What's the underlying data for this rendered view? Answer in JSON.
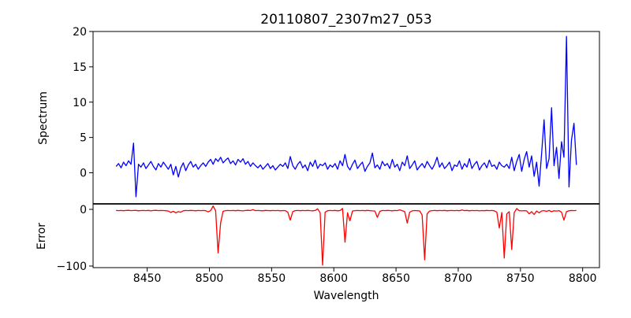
{
  "chart_data": {
    "type": "line",
    "title": "20110807_2307m27_053",
    "xlabel": "Wavelength",
    "xlim": [
      8406.5,
      8813.5
    ],
    "xticks": [
      8450,
      8500,
      8550,
      8600,
      8650,
      8700,
      8750,
      8800
    ],
    "x_start": 8425,
    "x_step": 2,
    "layout_note": "two vertically stacked panels sharing the x axis, no grid, no legend",
    "panels": [
      {
        "name": "spectrum",
        "ylabel": "Spectrum",
        "color": "#0000ff",
        "ylim": [
          -4.4,
          20.0
        ],
        "yticks": [
          0,
          5,
          10,
          15,
          20
        ],
        "values": [
          0.9,
          1.3,
          0.7,
          1.5,
          1.0,
          1.7,
          1.2,
          4.2,
          -3.4,
          1.2,
          0.8,
          1.4,
          0.6,
          1.1,
          1.6,
          0.9,
          0.4,
          1.3,
          0.8,
          1.5,
          1.0,
          0.5,
          1.2,
          -0.3,
          0.9,
          -0.6,
          0.7,
          1.4,
          0.3,
          1.1,
          1.6,
          0.8,
          1.2,
          0.5,
          1.0,
          1.4,
          0.9,
          1.5,
          1.9,
          1.2,
          2.0,
          1.6,
          2.2,
          1.4,
          1.8,
          2.1,
          1.3,
          1.7,
          1.1,
          1.9,
          1.5,
          2.0,
          1.2,
          1.6,
          0.9,
          1.4,
          1.0,
          0.7,
          1.1,
          0.5,
          0.9,
          1.3,
          0.6,
          1.0,
          0.4,
          0.8,
          1.2,
          0.9,
          1.4,
          0.6,
          2.3,
          1.0,
          0.5,
          1.2,
          1.6,
          0.7,
          1.1,
          0.3,
          1.5,
          0.9,
          1.8,
          0.6,
          1.2,
          1.0,
          1.4,
          0.5,
          1.1,
          0.8,
          1.3,
          0.5,
          1.7,
          1.0,
          2.6,
          0.9,
          0.4,
          1.2,
          1.8,
          0.6,
          1.1,
          1.5,
          0.2,
          0.9,
          1.4,
          2.8,
          0.7,
          1.1,
          0.5,
          1.6,
          1.0,
          1.3,
          0.6,
          1.9,
          0.8,
          1.2,
          0.3,
          1.5,
          1.0,
          2.4,
          0.6,
          1.1,
          1.7,
          0.4,
          0.9,
          1.3,
          0.7,
          1.6,
          1.0,
          0.5,
          1.2,
          2.2,
          0.8,
          1.4,
          0.6,
          1.0,
          1.5,
          0.3,
          1.1,
          0.9,
          1.7,
          0.5,
          1.3,
          0.8,
          2.0,
          0.6,
          1.2,
          1.6,
          0.4,
          1.0,
          1.4,
          0.7,
          1.8,
          0.9,
          1.1,
          0.5,
          1.5,
          1.0,
          0.8,
          1.2,
          0.6,
          2.2,
          0.3,
          1.6,
          2.6,
          0.2,
          1.9,
          3.0,
          0.8,
          2.4,
          -0.5,
          1.5,
          -1.9,
          2.8,
          7.5,
          0.6,
          2.0,
          9.2,
          1.0,
          3.6,
          -0.8,
          4.4,
          2.2,
          19.3,
          -2.0,
          4.6,
          7.0,
          1.1
        ]
      },
      {
        "name": "error",
        "ylabel": "Error",
        "color": "#ff0000",
        "ylim": [
          -102.8,
          9.7
        ],
        "yticks": [
          0,
          -100
        ],
        "values": [
          -1.8,
          -2.2,
          -1.9,
          -2.4,
          -2.0,
          -1.7,
          -2.3,
          -2.0,
          -1.8,
          -2.5,
          -2.1,
          -1.9,
          -2.2,
          -1.8,
          -2.6,
          -2.0,
          -1.7,
          -2.3,
          -1.9,
          -2.1,
          -2.4,
          -3.0,
          -5.5,
          -3.5,
          -6.0,
          -4.0,
          -5.0,
          -2.5,
          -2.0,
          -2.3,
          -1.8,
          -2.1,
          -2.5,
          -1.9,
          -2.2,
          -2.0,
          -2.4,
          -4.5,
          -2.2,
          6.0,
          -2.5,
          -77.0,
          -24.0,
          -3.5,
          -2.2,
          -1.9,
          -2.3,
          -2.0,
          -2.4,
          -1.8,
          -2.2,
          -2.6,
          -2.0,
          -1.7,
          -2.1,
          -0.5,
          -2.3,
          -1.9,
          -2.2,
          -2.5,
          -1.8,
          -2.1,
          -2.4,
          -2.0,
          -2.2,
          -1.9,
          -2.5,
          -2.1,
          -2.3,
          -5.0,
          -19.0,
          -4.0,
          -2.2,
          -1.9,
          -2.4,
          -2.0,
          -2.3,
          -1.8,
          -2.2,
          -2.5,
          -2.0,
          1.0,
          -6.0,
          -98.5,
          -5.0,
          -2.4,
          -2.0,
          -2.2,
          -1.8,
          -2.5,
          -2.1,
          1.5,
          -58.0,
          -6.0,
          -20.0,
          -3.0,
          -2.2,
          -1.9,
          -2.3,
          -2.0,
          -2.4,
          -1.8,
          -2.2,
          -2.6,
          -3.0,
          -14.0,
          -3.5,
          -2.0,
          -2.3,
          -1.8,
          -2.1,
          -2.5,
          -1.9,
          -2.2,
          -0.8,
          -2.4,
          -4.0,
          -24.0,
          -5.0,
          -2.6,
          -2.1,
          -2.4,
          -2.8,
          -10.0,
          -89.0,
          -8.0,
          -3.0,
          -2.2,
          -1.9,
          -2.4,
          -2.0,
          -2.3,
          -1.8,
          -2.5,
          -2.1,
          -1.9,
          -2.2,
          -2.0,
          -2.4,
          -1.0,
          -2.2,
          -1.8,
          -2.5,
          -2.0,
          -2.3,
          -1.9,
          -2.6,
          -2.1,
          -2.4,
          -1.8,
          -2.2,
          -2.0,
          -2.5,
          -5.0,
          -33.0,
          -5.5,
          -86.0,
          -8.0,
          -4.0,
          -71.0,
          -6.0,
          1.5,
          -2.4,
          -2.7,
          -2.2,
          -2.6,
          -8.0,
          -4.0,
          -9.0,
          -3.0,
          -6.0,
          -2.8,
          -2.2,
          -3.5,
          -2.0,
          -4.0,
          -2.5,
          -3.0,
          -2.2,
          -5.0,
          -19.0,
          -4.0,
          -2.5,
          -2.0,
          -2.3,
          -2.0
        ]
      }
    ]
  }
}
